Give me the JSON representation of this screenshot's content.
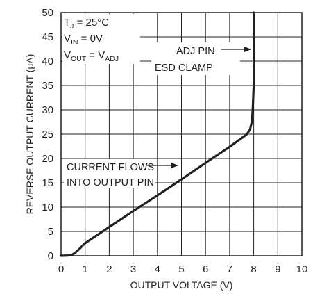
{
  "chart_data": {
    "type": "line",
    "title": "",
    "xlabel": "OUTPUT VOLTAGE (V)",
    "ylabel": "REVERSE OUTPUT CURRENT (μA)",
    "xlim": [
      0,
      10
    ],
    "ylim": [
      0,
      50
    ],
    "x_ticks": [
      "0",
      "1",
      "2",
      "3",
      "4",
      "5",
      "6",
      "7",
      "8",
      "9",
      "10"
    ],
    "y_ticks": [
      "0",
      "5",
      "10",
      "15",
      "20",
      "25",
      "30",
      "35",
      "40",
      "45",
      "50"
    ],
    "grid": true,
    "line_color": "#231f20",
    "series": [
      {
        "x": [
          0,
          0.3,
          0.45,
          0.55,
          0.65,
          0.8,
          1.0,
          2.0,
          3.0,
          4.0,
          5.0,
          6.0,
          7.0,
          7.7,
          7.85,
          7.92,
          7.96,
          8.0,
          8.0
        ],
        "y": [
          0,
          0.05,
          0.2,
          0.5,
          0.9,
          1.6,
          2.6,
          5.9,
          9.2,
          12.4,
          15.7,
          19.1,
          22.4,
          24.9,
          26.0,
          27.5,
          30.0,
          35.0,
          50.0
        ]
      }
    ],
    "conditions": {
      "tj": {
        "main": "T",
        "sub": "J",
        "rest": " = 25°C"
      },
      "vin": {
        "main": "V",
        "sub": "IN",
        "rest": " = 0V"
      },
      "vout": {
        "main": "V",
        "sub": "OUT",
        "mid": " = V",
        "sub2": "ADJ"
      }
    },
    "annotations": {
      "adj_line1": "ADJ PIN",
      "adj_line2": "ESD CLAMP",
      "flow_line1": "CURRENT FLOWS",
      "flow_line2": "INTO OUTPUT PIN"
    }
  }
}
